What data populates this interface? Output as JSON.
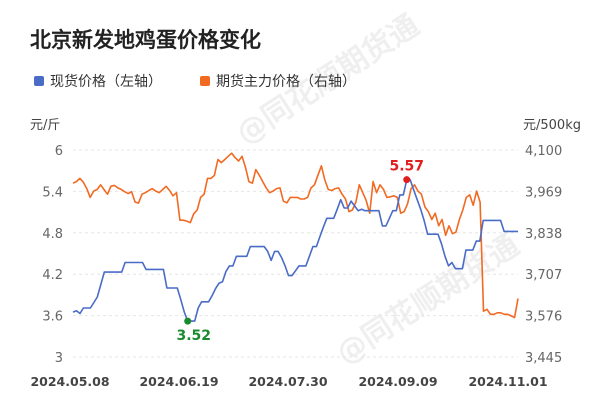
{
  "chart_data": {
    "type": "line",
    "title": "北京新发地鸡蛋价格变化",
    "legend": [
      "现货价格（左轴）",
      "期货主力价格（右轴）"
    ],
    "left_unit": "元/斤",
    "right_unit": "元/500kg",
    "left_ylim": [
      3,
      6
    ],
    "right_ylim": [
      3445,
      4100
    ],
    "left_ticks": [
      "6",
      "5.4",
      "4.8",
      "4.2",
      "3.6",
      "3"
    ],
    "right_ticks": [
      "4,100",
      "3,969",
      "3,838",
      "3,707",
      "3,576",
      "3,445"
    ],
    "x_ticks": [
      "2024.05.08",
      "2024.06.19",
      "2024.07.30",
      "2024.09.09",
      "2024.11.01"
    ],
    "colors": {
      "spot": "#4a6cc7",
      "futures": "#f26a22",
      "max_label": "#e01f1f",
      "min_label": "#1a8a2e"
    },
    "annotations": {
      "max_label": "5.57",
      "min_label": "3.52"
    },
    "series": [
      {
        "name": "现货价格（左轴）",
        "axis": "left",
        "values": [
          3.65,
          3.67,
          3.63,
          3.71,
          3.71,
          3.71,
          3.79,
          3.87,
          4.05,
          4.23,
          4.23,
          4.23,
          4.23,
          4.23,
          4.23,
          4.37,
          4.37,
          4.37,
          4.37,
          4.37,
          4.37,
          4.27,
          4.27,
          4.27,
          4.27,
          4.27,
          4.27,
          4.0,
          4.0,
          4.0,
          4.0,
          3.83,
          3.65,
          3.52,
          3.52,
          3.52,
          3.71,
          3.8,
          3.8,
          3.8,
          3.89,
          3.99,
          4.07,
          4.09,
          4.24,
          4.32,
          4.32,
          4.46,
          4.46,
          4.46,
          4.46,
          4.6,
          4.6,
          4.6,
          4.6,
          4.6,
          4.53,
          4.4,
          4.53,
          4.53,
          4.44,
          4.32,
          4.18,
          4.18,
          4.25,
          4.32,
          4.32,
          4.32,
          4.46,
          4.6,
          4.6,
          4.74,
          4.88,
          5.01,
          5.01,
          5.01,
          5.14,
          5.28,
          5.16,
          5.16,
          5.26,
          5.19,
          5.12,
          5.14,
          5.12,
          5.12,
          5.12,
          5.12,
          5.12,
          4.9,
          4.9,
          5.01,
          5.12,
          5.12,
          5.35,
          5.35,
          5.57,
          5.57,
          5.42,
          5.28,
          5.14,
          4.98,
          4.78,
          4.78,
          4.78,
          4.78,
          4.64,
          4.46,
          4.32,
          4.37,
          4.28,
          4.28,
          4.28,
          4.55,
          4.55,
          4.55,
          4.68,
          4.68,
          4.98,
          4.98,
          4.98,
          4.98,
          4.98,
          4.98,
          4.82,
          4.82,
          4.82,
          4.82,
          4.82
        ]
      },
      {
        "name": "期货主力价格（右轴）",
        "axis": "right",
        "values": [
          3995,
          4000,
          4010,
          3998,
          3978,
          3950,
          3970,
          3975,
          3990,
          3975,
          3960,
          3985,
          3988,
          3980,
          3975,
          3968,
          3962,
          3968,
          3935,
          3932,
          3960,
          3965,
          3972,
          3978,
          3970,
          3965,
          3975,
          3985,
          3972,
          3955,
          3965,
          3878,
          3878,
          3875,
          3870,
          3898,
          3910,
          3950,
          3960,
          4010,
          4010,
          4020,
          4070,
          4060,
          4070,
          4080,
          4090,
          4076,
          4065,
          4080,
          4045,
          4000,
          3995,
          4038,
          4020,
          4000,
          3980,
          3965,
          3970,
          3978,
          3980,
          3938,
          3933,
          3950,
          3950,
          3950,
          3945,
          3945,
          3950,
          3980,
          3990,
          4020,
          4050,
          4005,
          3975,
          3972,
          3978,
          3980,
          3960,
          3945,
          3905,
          3910,
          3935,
          3990,
          3965,
          3940,
          3900,
          4000,
          3965,
          3990,
          3975,
          3950,
          3952,
          3955,
          3950,
          3900,
          3905,
          3930,
          3978,
          3990,
          3970,
          3960,
          3920,
          3905,
          3880,
          3900,
          3860,
          3880,
          3830,
          3860,
          3835,
          3840,
          3880,
          3910,
          3950,
          3958,
          3925,
          3970,
          3935,
          3590,
          3596,
          3580,
          3580,
          3585,
          3585,
          3580,
          3580,
          3575,
          3570,
          3630
        ]
      }
    ]
  },
  "watermark": "@同花顺期货通"
}
